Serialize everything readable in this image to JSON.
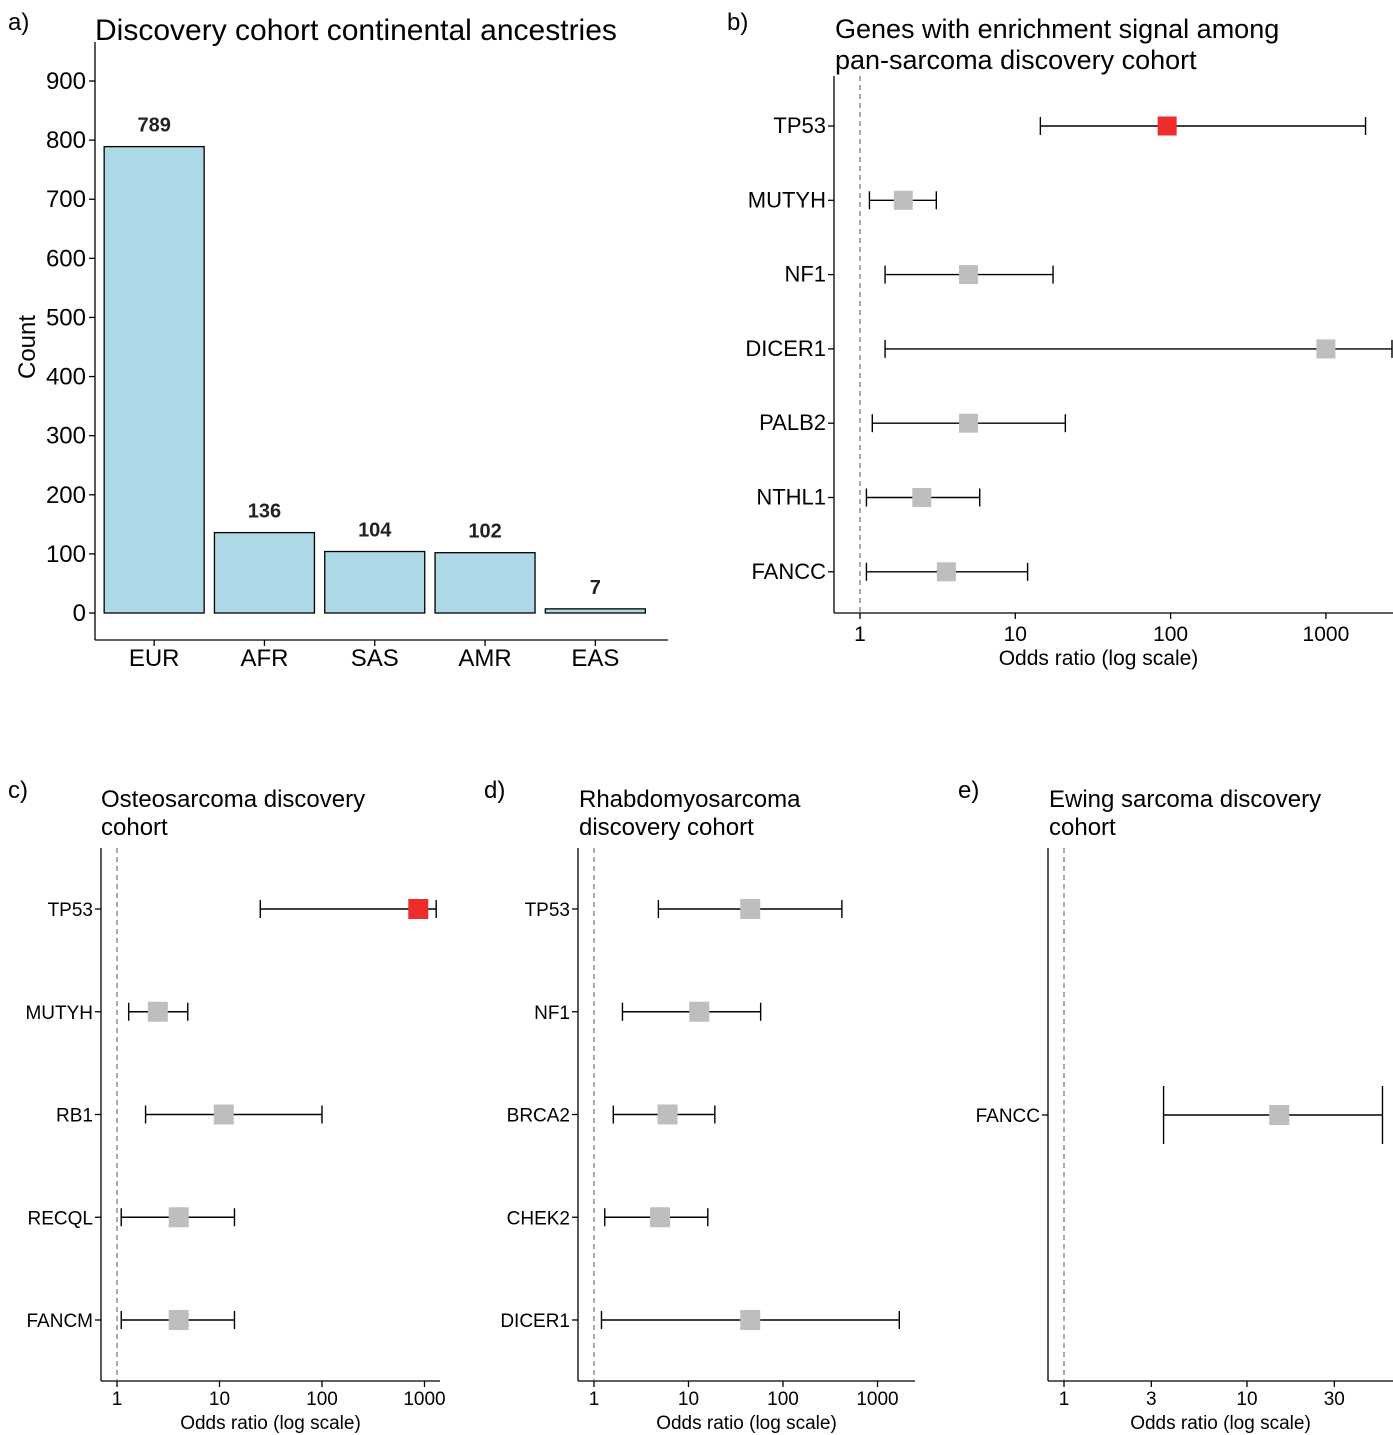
{
  "colors": {
    "bar_fill": "#add8e6",
    "highlight": "#ee2c2c",
    "point": "#bebebe",
    "line": "#000000",
    "ref_line": "#555555"
  },
  "chart_data": [
    {
      "panel": "a)",
      "type": "bar",
      "title": "Discovery cohort continental ancestries",
      "xlabel": "",
      "ylabel": "Count",
      "ylim": [
        0,
        950
      ],
      "yticks": [
        0,
        100,
        200,
        300,
        400,
        500,
        600,
        700,
        800,
        900
      ],
      "categories": [
        "EUR",
        "AFR",
        "SAS",
        "AMR",
        "EAS"
      ],
      "values": [
        789,
        136,
        104,
        102,
        7
      ],
      "grid": false
    },
    {
      "panel": "b)",
      "type": "scatter",
      "title": [
        "Genes with enrichment signal among",
        "pan-sarcoma discovery cohort"
      ],
      "xlabel": "Odds ratio (log scale)",
      "xscale": "log",
      "xlim": [
        0.85,
        2800
      ],
      "xticks": [
        1,
        10,
        100,
        1000
      ],
      "reference_line": 1,
      "points": [
        {
          "gene": "TP53",
          "or": 95,
          "lo": 14.5,
          "hi": 1800,
          "highlight": true
        },
        {
          "gene": "MUTYH",
          "or": 1.9,
          "lo": 1.15,
          "hi": 3.1,
          "highlight": false
        },
        {
          "gene": "NF1",
          "or": 5.0,
          "lo": 1.45,
          "hi": 17.5,
          "highlight": false
        },
        {
          "gene": "DICER1",
          "or": 1000,
          "lo": 1.45,
          "hi": 2800,
          "highlight": false
        },
        {
          "gene": "PALB2",
          "or": 5.0,
          "lo": 1.2,
          "hi": 21,
          "highlight": false
        },
        {
          "gene": "NTHL1",
          "or": 2.5,
          "lo": 1.1,
          "hi": 5.9,
          "highlight": false
        },
        {
          "gene": "FANCC",
          "or": 3.6,
          "lo": 1.1,
          "hi": 12,
          "highlight": false
        }
      ]
    },
    {
      "panel": "c)",
      "type": "scatter",
      "title": [
        "Osteosarcoma discovery",
        "cohort"
      ],
      "xlabel": "Odds ratio (log scale)",
      "xscale": "log",
      "xlim": [
        0.7,
        1500
      ],
      "xticks": [
        1,
        10,
        100,
        1000
      ],
      "reference_line": 1,
      "points": [
        {
          "gene": "TP53",
          "or": 870,
          "lo": 25,
          "hi": 1300,
          "highlight": true
        },
        {
          "gene": "MUTYH",
          "or": 2.5,
          "lo": 1.3,
          "hi": 4.9,
          "highlight": false
        },
        {
          "gene": "RB1",
          "or": 11,
          "lo": 1.9,
          "hi": 100,
          "highlight": false
        },
        {
          "gene": "RECQL",
          "or": 4.0,
          "lo": 1.1,
          "hi": 14,
          "highlight": false
        },
        {
          "gene": "FANCM",
          "or": 4.0,
          "lo": 1.1,
          "hi": 14,
          "highlight": false
        }
      ]
    },
    {
      "panel": "d)",
      "type": "scatter",
      "title": [
        "Rhabdomyosarcoma",
        "discovery cohort"
      ],
      "xlabel": "Odds ratio (log scale)",
      "xscale": "log",
      "xlim": [
        0.7,
        4000
      ],
      "xticks": [
        1,
        10,
        100,
        1000
      ],
      "reference_line": 1,
      "points": [
        {
          "gene": "TP53",
          "or": 45,
          "lo": 4.8,
          "hi": 420,
          "highlight": false
        },
        {
          "gene": "NF1",
          "or": 13,
          "lo": 2.0,
          "hi": 58,
          "highlight": false
        },
        {
          "gene": "BRCA2",
          "or": 6.0,
          "lo": 1.6,
          "hi": 19,
          "highlight": false
        },
        {
          "gene": "CHEK2",
          "or": 5.0,
          "lo": 1.3,
          "hi": 16,
          "highlight": false
        },
        {
          "gene": "DICER1",
          "or": 45,
          "lo": 1.2,
          "hi": 1700,
          "highlight": false
        }
      ]
    },
    {
      "panel": "e)",
      "type": "scatter",
      "title": [
        "Ewing sarcoma discovery",
        "cohort"
      ],
      "xlabel": "Odds ratio (log scale)",
      "xscale": "log",
      "xlim": [
        0.8,
        75
      ],
      "xticks": [
        1,
        3,
        10,
        30
      ],
      "reference_line": 1,
      "points": [
        {
          "gene": "FANCC",
          "or": 15,
          "lo": 3.5,
          "hi": 55,
          "highlight": false
        }
      ]
    }
  ]
}
